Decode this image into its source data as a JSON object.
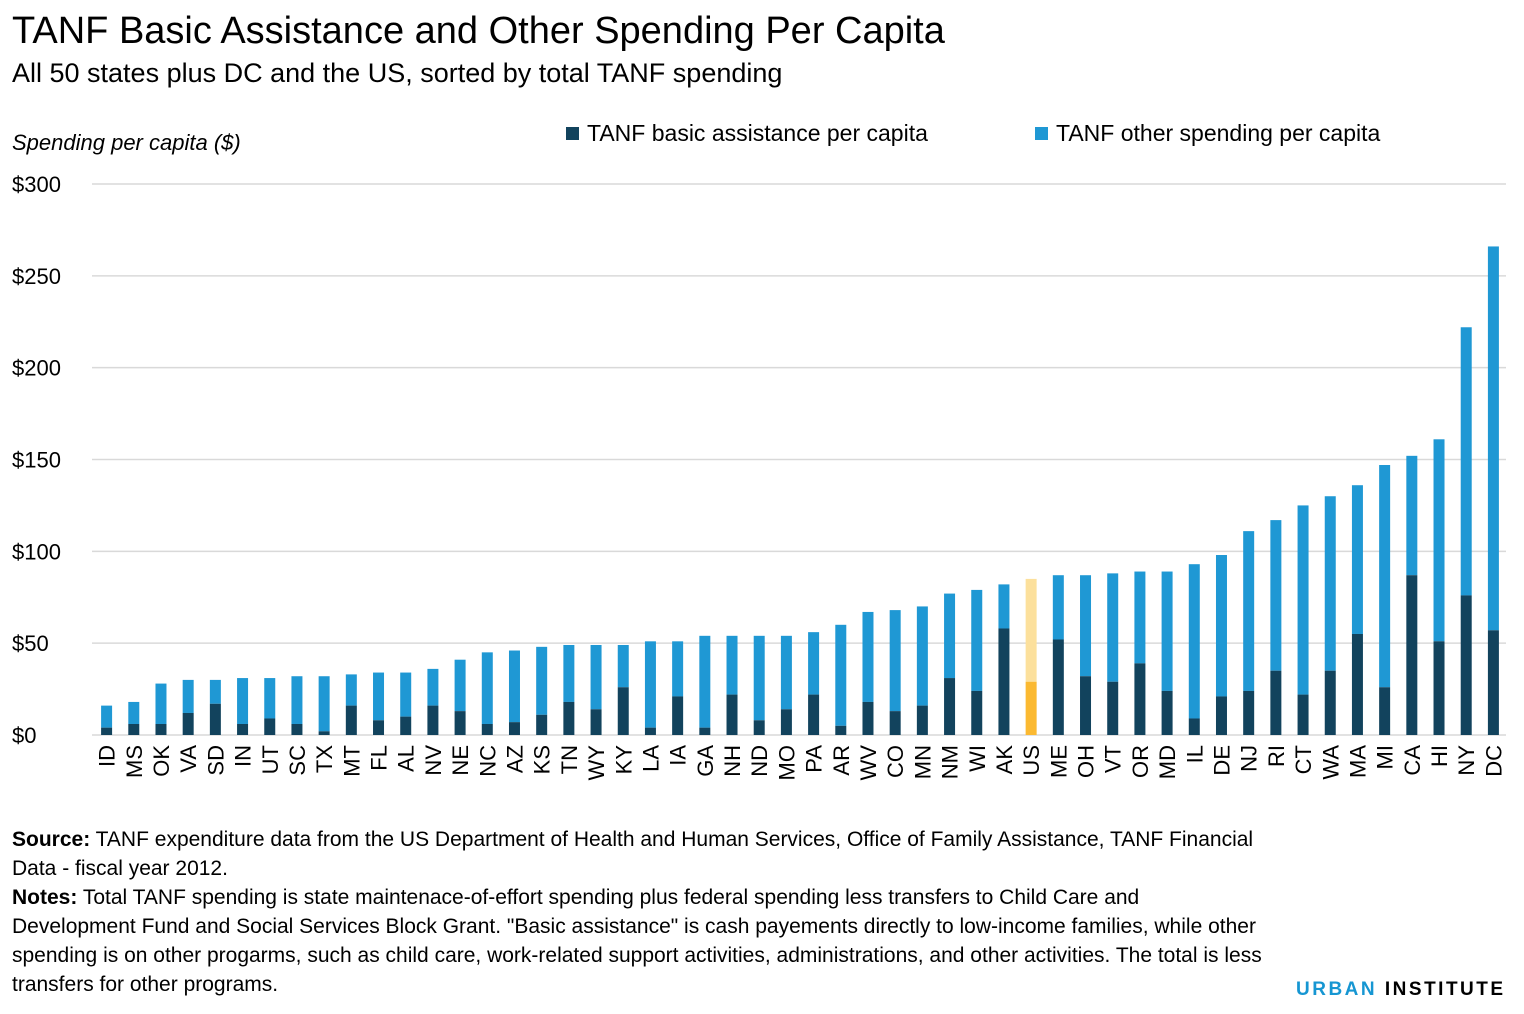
{
  "header": {
    "title": "TANF Basic Assistance and Other Spending Per Capita",
    "subtitle": "All 50 states plus DC and the US, sorted by total TANF spending",
    "y_axis_label": "Spending per capita ($)"
  },
  "legend": {
    "basic_label": "TANF basic assistance per capita",
    "other_label": "TANF other spending per capita"
  },
  "colors": {
    "basic": "#12435d",
    "other": "#1f98d4",
    "us_basic": "#fbb931",
    "us_other": "#fce09c",
    "grid": "#d9d9d9"
  },
  "chart_data": {
    "type": "bar",
    "stacked": true,
    "title": "TANF Basic Assistance and Other Spending Per Capita",
    "subtitle": "All 50 states plus DC and the US, sorted by total TANF spending",
    "ylabel": "Spending per capita ($)",
    "ylim": [
      0,
      300
    ],
    "yticks": [
      0,
      50,
      100,
      150,
      200,
      250,
      300
    ],
    "ytick_labels": [
      "$0",
      "$50",
      "$100",
      "$150",
      "$200",
      "$250",
      "$300"
    ],
    "grid": "horizontal",
    "legend_position": "top",
    "highlight_category": "US",
    "categories": [
      "ID",
      "MS",
      "OK",
      "VA",
      "SD",
      "IN",
      "UT",
      "SC",
      "TX",
      "MT",
      "FL",
      "AL",
      "NV",
      "NE",
      "NC",
      "AZ",
      "KS",
      "TN",
      "WY",
      "KY",
      "LA",
      "IA",
      "GA",
      "NH",
      "ND",
      "MO",
      "PA",
      "AR",
      "WV",
      "CO",
      "MN",
      "NM",
      "WI",
      "AK",
      "US",
      "ME",
      "OH",
      "VT",
      "OR",
      "MD",
      "IL",
      "DE",
      "NJ",
      "RI",
      "CT",
      "WA",
      "MA",
      "MI",
      "CA",
      "HI",
      "NY",
      "DC"
    ],
    "series": [
      {
        "name": "TANF basic assistance per capita",
        "values": [
          4,
          6,
          6,
          12,
          17,
          6,
          9,
          6,
          2,
          16,
          8,
          10,
          16,
          13,
          6,
          7,
          11,
          18,
          14,
          26,
          4,
          21,
          4,
          22,
          8,
          14,
          22,
          5,
          18,
          13,
          16,
          31,
          24,
          58,
          29,
          52,
          32,
          29,
          39,
          24,
          9,
          21,
          24,
          35,
          22,
          35,
          55,
          26,
          87,
          51,
          76,
          57
        ]
      },
      {
        "name": "TANF other spending per capita",
        "values": [
          12,
          12,
          22,
          18,
          13,
          25,
          22,
          26,
          30,
          17,
          26,
          24,
          20,
          28,
          39,
          39,
          37,
          31,
          35,
          23,
          47,
          30,
          50,
          32,
          46,
          40,
          34,
          55,
          49,
          55,
          54,
          46,
          55,
          24,
          56,
          35,
          55,
          59,
          50,
          65,
          84,
          77,
          87,
          82,
          103,
          95,
          81,
          121,
          65,
          110,
          146,
          209
        ]
      }
    ]
  },
  "footer": {
    "source_label": "Source:",
    "source_text": "TANF expenditure data from the US Department of Health and Human Services, Office of Family Assistance, TANF Financial Data - fiscal year 2012.",
    "notes_label": "Notes:",
    "notes_text": "Total TANF spending is state maintenace-of-effort spending plus federal spending less transfers to Child Care and Development Fund and Social Services Block Grant. \"Basic assistance\" is cash payements directly to low-income families, while other spending is on other progarms, such as child care, work-related support activities, administrations, and other activities. The total is less transfers for other programs."
  },
  "logo": {
    "urban": "URBAN",
    "institute": "INSTITUTE"
  }
}
